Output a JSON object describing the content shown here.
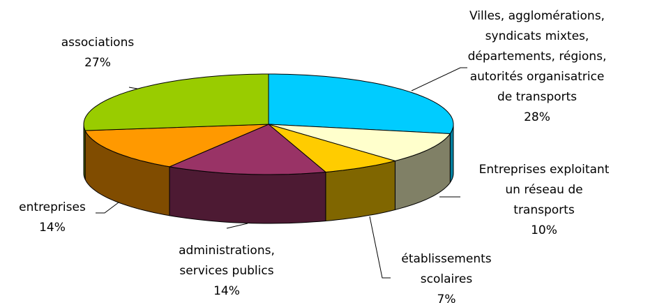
{
  "chart_data": {
    "type": "pie3d",
    "categories": [
      [
        "Villes, agglomérations,",
        "syndicats mixtes,",
        "départements, régions,",
        "autorités organisatrice",
        "de transports"
      ],
      [
        "Entreprises exploitant",
        "un réseau de",
        "transports"
      ],
      [
        "établissements",
        "scolaires"
      ],
      [
        "administrations,",
        "services publics"
      ],
      [
        "entreprises"
      ],
      [
        "associations"
      ]
    ],
    "values": [
      28,
      10,
      7,
      14,
      14,
      27
    ],
    "value_labels": [
      "28%",
      "10%",
      "7%",
      "14%",
      "14%",
      "27%"
    ],
    "colors": [
      "#00ccff",
      "#ffffcc",
      "#ffcc00",
      "#993366",
      "#ff9900",
      "#99cc00"
    ],
    "side_colors": [
      "#0080a0",
      "#808066",
      "#806600",
      "#4d1a33",
      "#804c00",
      "#4d6600"
    ]
  }
}
